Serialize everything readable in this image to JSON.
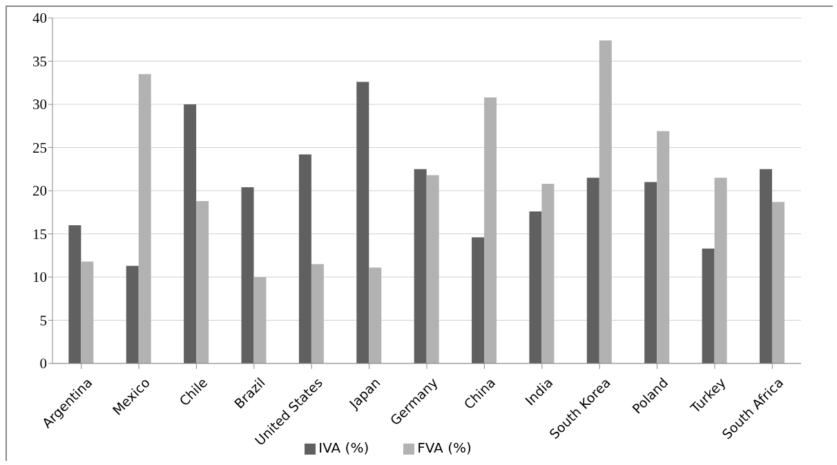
{
  "chart_data": {
    "type": "bar",
    "categories": [
      "Argentina",
      "Mexico",
      "Chile",
      "Brazil",
      "United States",
      "Japan",
      "Germany",
      "China",
      "India",
      "South Korea",
      "Poland",
      "Turkey",
      "South Africa"
    ],
    "series": [
      {
        "name": "IVA (%)",
        "color": "#606060",
        "values": [
          16.0,
          11.3,
          30.0,
          20.4,
          24.2,
          32.6,
          22.5,
          14.6,
          17.6,
          21.5,
          21.0,
          13.3,
          22.5
        ]
      },
      {
        "name": "FVA (%)",
        "color": "#b2b2b2",
        "values": [
          11.8,
          33.5,
          18.8,
          10.0,
          11.5,
          11.1,
          21.8,
          30.8,
          20.8,
          37.4,
          26.9,
          21.5,
          18.7
        ]
      }
    ],
    "ylim": [
      0,
      40
    ],
    "yticks": [
      0,
      5,
      10,
      15,
      20,
      25,
      30,
      35,
      40
    ],
    "grid": "y",
    "legend": "bottom"
  }
}
